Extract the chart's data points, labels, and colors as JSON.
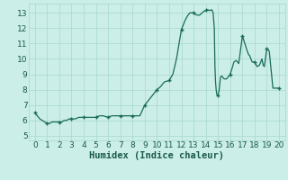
{
  "title": "",
  "xlabel": "Humidex (Indice chaleur)",
  "ylabel": "",
  "background_color": "#cbeee8",
  "plot_bg_color": "#cbeee8",
  "line_color": "#1a6b5a",
  "marker_color": "#1a6b5a",
  "grid_color": "#a8d8cc",
  "xlim": [
    -0.5,
    20.5
  ],
  "ylim": [
    4.7,
    13.6
  ],
  "yticks": [
    5,
    6,
    7,
    8,
    9,
    10,
    11,
    12,
    13
  ],
  "xticks": [
    0,
    1,
    2,
    3,
    4,
    5,
    6,
    7,
    8,
    9,
    10,
    11,
    12,
    13,
    14,
    15,
    16,
    17,
    18,
    19,
    20
  ],
  "x": [
    0.0,
    0.2,
    0.4,
    0.6,
    0.8,
    1.0,
    1.2,
    1.4,
    1.6,
    1.8,
    2.0,
    2.2,
    2.4,
    2.6,
    2.8,
    3.0,
    3.3,
    3.6,
    4.0,
    4.3,
    4.6,
    5.0,
    5.3,
    5.6,
    6.0,
    6.3,
    6.6,
    7.0,
    7.3,
    7.6,
    8.0,
    8.3,
    8.6,
    9.0,
    9.3,
    9.6,
    10.0,
    10.3,
    10.6,
    11.0,
    11.3,
    11.6,
    12.0,
    12.15,
    12.3,
    12.5,
    12.7,
    12.85,
    13.0,
    13.15,
    13.3,
    13.5,
    13.7,
    13.85,
    14.0,
    14.15,
    14.3,
    14.5,
    14.6,
    14.7,
    14.75,
    14.8,
    14.85,
    14.9,
    15.0,
    15.1,
    15.2,
    15.3,
    15.5,
    15.7,
    15.9,
    16.0,
    16.2,
    16.3,
    16.5,
    16.7,
    17.0,
    17.2,
    17.4,
    17.5,
    17.6,
    17.7,
    17.8,
    18.0,
    18.2,
    18.4,
    18.5,
    18.6,
    18.7,
    18.8,
    19.0,
    19.2,
    19.5,
    20.0
  ],
  "y": [
    6.5,
    6.3,
    6.1,
    6.0,
    5.9,
    5.8,
    5.8,
    5.9,
    5.9,
    5.9,
    5.9,
    5.9,
    6.0,
    6.0,
    6.1,
    6.1,
    6.1,
    6.2,
    6.2,
    6.2,
    6.2,
    6.2,
    6.3,
    6.3,
    6.2,
    6.3,
    6.3,
    6.3,
    6.3,
    6.3,
    6.3,
    6.3,
    6.3,
    7.0,
    7.3,
    7.6,
    8.0,
    8.2,
    8.5,
    8.6,
    9.0,
    10.0,
    11.9,
    12.2,
    12.5,
    12.8,
    13.0,
    13.0,
    13.0,
    12.9,
    12.85,
    12.85,
    13.0,
    13.1,
    13.15,
    13.2,
    13.15,
    13.2,
    13.0,
    12.0,
    9.5,
    8.5,
    8.0,
    7.7,
    7.6,
    8.0,
    8.8,
    8.9,
    8.7,
    8.7,
    8.9,
    9.0,
    9.5,
    9.8,
    9.9,
    9.7,
    11.5,
    11.0,
    10.5,
    10.3,
    10.2,
    10.0,
    9.8,
    9.8,
    9.5,
    9.6,
    9.8,
    10.0,
    9.6,
    9.5,
    10.7,
    10.5,
    8.1,
    8.1
  ],
  "marker_x": [
    0,
    1,
    2,
    3,
    4,
    5,
    6,
    7,
    8,
    9,
    10,
    11,
    12,
    13,
    14,
    15,
    16,
    17,
    18,
    19,
    20
  ],
  "marker_y": [
    6.5,
    5.8,
    5.9,
    6.1,
    6.2,
    6.2,
    6.2,
    6.3,
    6.3,
    7.0,
    8.0,
    8.6,
    11.9,
    13.0,
    13.2,
    7.6,
    9.0,
    11.5,
    9.8,
    10.7,
    8.1
  ],
  "tick_fontsize": 6.5,
  "label_fontsize": 7.5
}
